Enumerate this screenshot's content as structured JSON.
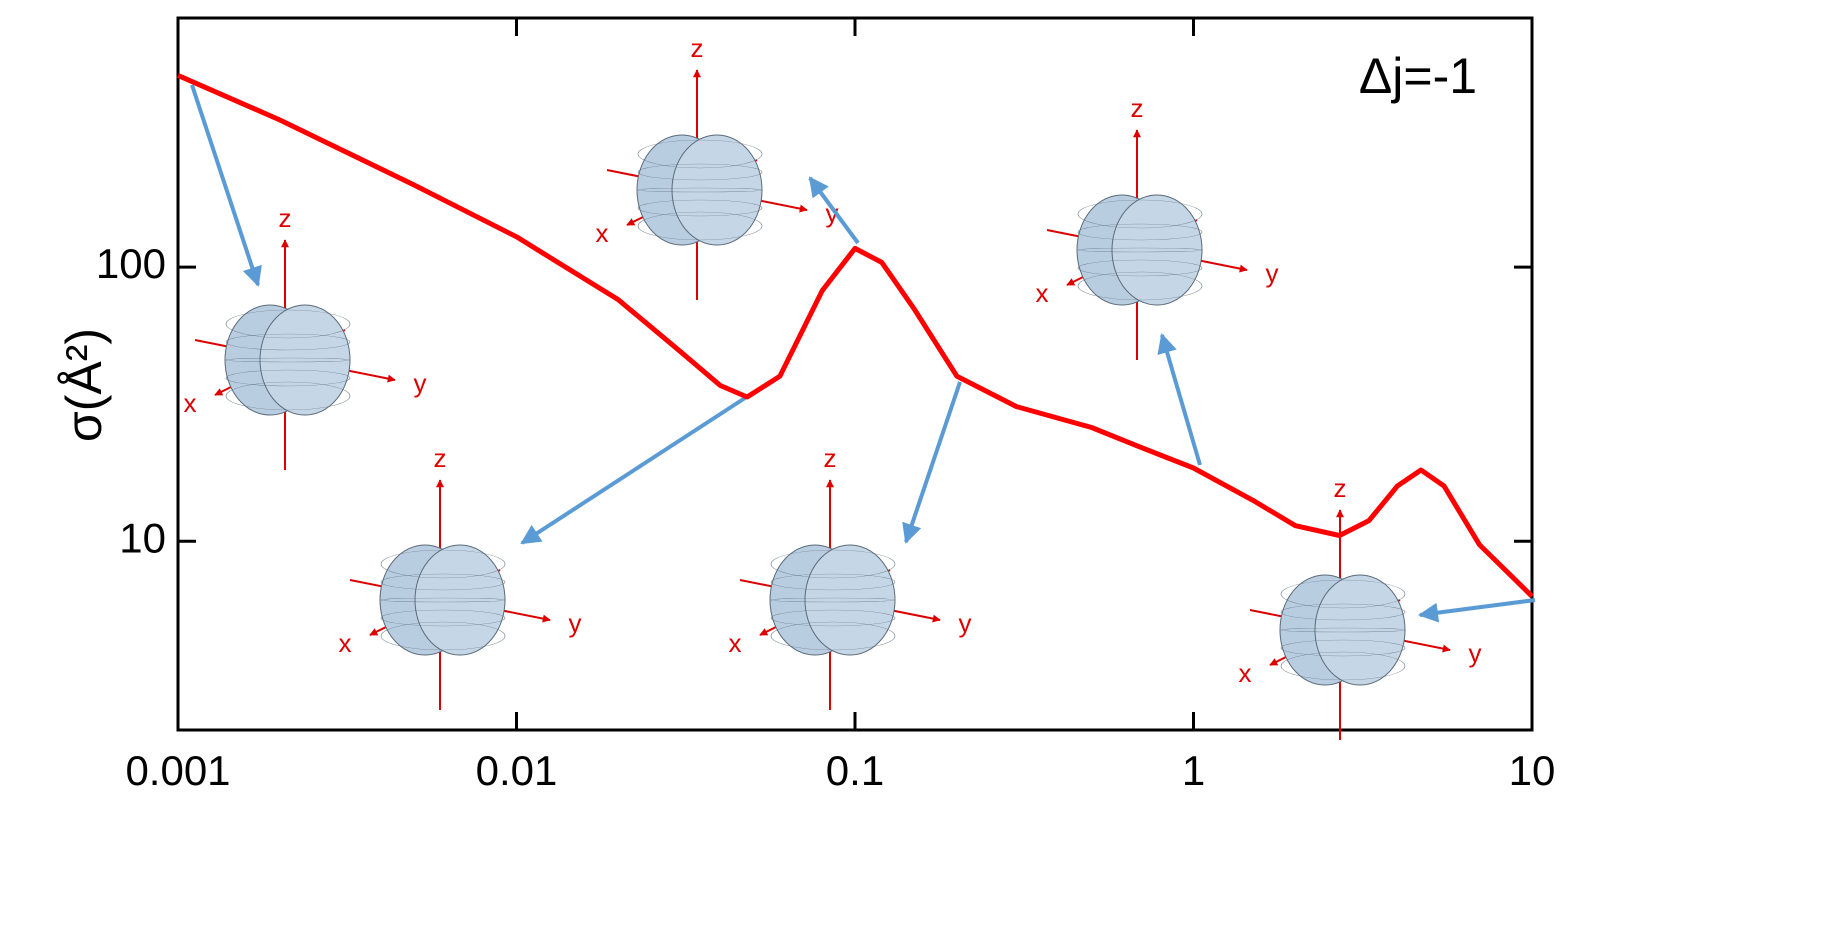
{
  "chart_data": {
    "type": "line",
    "y_label": "σ(Å²)",
    "annotation": "Δj=-1",
    "x": [
      0.001,
      0.002,
      0.005,
      0.01,
      0.02,
      0.03,
      0.04,
      0.048,
      0.06,
      0.08,
      0.1,
      0.12,
      0.15,
      0.2,
      0.3,
      0.5,
      0.7,
      1,
      1.5,
      2,
      2.7,
      3.3,
      4,
      4.7,
      5.5,
      7,
      10
    ],
    "series": [
      {
        "color": "#ff0000",
        "values": [
          500,
          344,
          199,
          129,
          76,
          50,
          37,
          33.6,
          40,
          82,
          117,
          104,
          70,
          40,
          31,
          26,
          22,
          18.5,
          14.1,
          11.4,
          10.5,
          11.9,
          15.9,
          18.2,
          15.9,
          9.7,
          6.3
        ]
      }
    ],
    "xscale": "log",
    "yscale": "log",
    "xlim": [
      0.001,
      10
    ],
    "ylim": [
      2.05,
      810
    ],
    "xticks": [
      0.001,
      0.01,
      0.1,
      1,
      10
    ],
    "yticks": [
      10,
      100
    ],
    "insets": [
      {
        "labels": [
          "x",
          "y",
          "z"
        ]
      },
      {
        "labels": [
          "x",
          "y",
          "z"
        ]
      },
      {
        "labels": [
          "x",
          "y",
          "z"
        ]
      },
      {
        "labels": [
          "x",
          "y",
          "z"
        ]
      },
      {
        "labels": [
          "x",
          "y",
          "z"
        ]
      },
      {
        "labels": [
          "x",
          "y",
          "z"
        ]
      }
    ]
  }
}
